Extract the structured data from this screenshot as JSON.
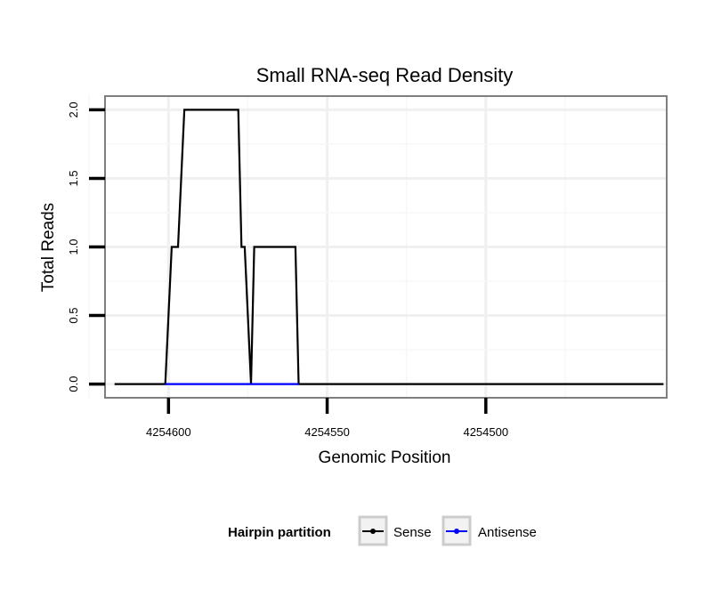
{
  "chart_data": {
    "type": "line",
    "title": "Small RNA-seq Read Density",
    "xlabel": "Genomic Position",
    "ylabel": "Total Reads",
    "x_reversed": true,
    "xlim": [
      4254620,
      4254443
    ],
    "ylim": [
      -0.1,
      2.1
    ],
    "x_ticks": [
      4254600,
      4254550,
      4254500
    ],
    "x_tick_labels": [
      "4254600",
      "4254550",
      "4254500"
    ],
    "y_ticks": [
      0,
      0.5,
      1,
      1.5,
      2
    ],
    "y_tick_labels": [
      "0.0",
      "0.5",
      "1.0",
      "1.5",
      "2.0"
    ],
    "grid": true,
    "legend": {
      "title": "Hairpin partition",
      "position": "bottom",
      "items": [
        {
          "label": "Sense",
          "color": "#000000"
        },
        {
          "label": "Antisense",
          "color": "#0000ff"
        }
      ]
    },
    "series": [
      {
        "name": "Sense",
        "color": "#000000",
        "x": [
          4254617,
          4254601,
          4254599,
          4254597,
          4254595,
          4254578,
          4254577,
          4254576,
          4254574,
          4254573,
          4254571,
          4254560,
          4254559,
          4254444
        ],
        "y": [
          0,
          0,
          1,
          1,
          2,
          2,
          1,
          1,
          0,
          1,
          1,
          1,
          0,
          0
        ]
      },
      {
        "name": "Antisense",
        "color": "#0000ff",
        "x": [
          4254601,
          4254559
        ],
        "y": [
          0,
          0
        ]
      }
    ]
  }
}
